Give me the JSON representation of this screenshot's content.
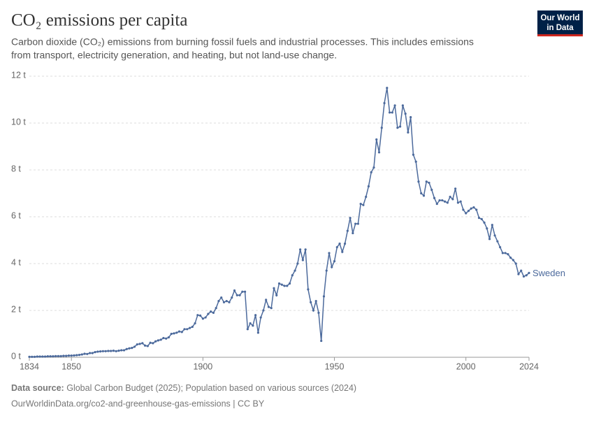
{
  "chart_data": {
    "type": "line",
    "title": "CO₂ emissions per capita",
    "subtitle": [
      "Carbon dioxide (CO₂) emissions from burning fossil fuels and industrial processes. This includes emissions",
      "from transport, electricity generation, and heating, but not land-use change."
    ],
    "logo": [
      "Our World",
      "in Data"
    ],
    "source_label": "Data source:",
    "source": "Global Carbon Budget (2025); Population based on various sources (2024)",
    "url": "OurWorldinData.org/co2-and-greenhouse-gas-emissions | CC BY",
    "xlim": [
      1834,
      2024
    ],
    "xticks": [
      1834,
      1850,
      1900,
      1950,
      2000,
      2024
    ],
    "ylim": [
      0,
      12
    ],
    "yticks": [
      {
        "value": 0,
        "label": "0 t"
      },
      {
        "value": 2,
        "label": "2 t"
      },
      {
        "value": 4,
        "label": "4 t"
      },
      {
        "value": 6,
        "label": "6 t"
      },
      {
        "value": 8,
        "label": "8 t"
      },
      {
        "value": 10,
        "label": "10 t"
      },
      {
        "value": 12,
        "label": "12 t"
      }
    ],
    "grid": true,
    "x": [
      1834,
      1835,
      1836,
      1837,
      1838,
      1839,
      1840,
      1841,
      1842,
      1843,
      1844,
      1845,
      1846,
      1847,
      1848,
      1849,
      1850,
      1851,
      1852,
      1853,
      1854,
      1855,
      1856,
      1857,
      1858,
      1859,
      1860,
      1861,
      1862,
      1863,
      1864,
      1865,
      1866,
      1867,
      1868,
      1869,
      1870,
      1871,
      1872,
      1873,
      1874,
      1875,
      1876,
      1877,
      1878,
      1879,
      1880,
      1881,
      1882,
      1883,
      1884,
      1885,
      1886,
      1887,
      1888,
      1889,
      1890,
      1891,
      1892,
      1893,
      1894,
      1895,
      1896,
      1897,
      1898,
      1899,
      1900,
      1901,
      1902,
      1903,
      1904,
      1905,
      1906,
      1907,
      1908,
      1909,
      1910,
      1911,
      1912,
      1913,
      1914,
      1915,
      1916,
      1917,
      1918,
      1919,
      1920,
      1921,
      1922,
      1923,
      1924,
      1925,
      1926,
      1927,
      1928,
      1929,
      1930,
      1931,
      1932,
      1933,
      1934,
      1935,
      1936,
      1937,
      1938,
      1939,
      1940,
      1941,
      1942,
      1943,
      1944,
      1945,
      1946,
      1947,
      1948,
      1949,
      1950,
      1951,
      1952,
      1953,
      1954,
      1955,
      1956,
      1957,
      1958,
      1959,
      1960,
      1961,
      1962,
      1963,
      1964,
      1965,
      1966,
      1967,
      1968,
      1969,
      1970,
      1971,
      1972,
      1973,
      1974,
      1975,
      1976,
      1977,
      1978,
      1979,
      1980,
      1981,
      1982,
      1983,
      1984,
      1985,
      1986,
      1987,
      1988,
      1989,
      1990,
      1991,
      1992,
      1993,
      1994,
      1995,
      1996,
      1997,
      1998,
      1999,
      2000,
      2001,
      2002,
      2003,
      2004,
      2005,
      2006,
      2007,
      2008,
      2009,
      2010,
      2011,
      2012,
      2013,
      2014,
      2015,
      2016,
      2017,
      2018,
      2019,
      2020,
      2021,
      2022,
      2023,
      2024
    ],
    "series": [
      {
        "name": "Sweden",
        "color": "#4c6a9c",
        "values": [
          0.02,
          0.02,
          0.02,
          0.03,
          0.03,
          0.03,
          0.03,
          0.04,
          0.04,
          0.04,
          0.05,
          0.05,
          0.05,
          0.06,
          0.06,
          0.07,
          0.07,
          0.08,
          0.09,
          0.1,
          0.12,
          0.15,
          0.14,
          0.18,
          0.18,
          0.22,
          0.24,
          0.25,
          0.26,
          0.26,
          0.27,
          0.27,
          0.28,
          0.26,
          0.28,
          0.3,
          0.3,
          0.35,
          0.38,
          0.4,
          0.45,
          0.55,
          0.57,
          0.6,
          0.5,
          0.48,
          0.62,
          0.6,
          0.68,
          0.72,
          0.75,
          0.82,
          0.8,
          0.85,
          1.0,
          1.02,
          1.05,
          1.1,
          1.08,
          1.2,
          1.2,
          1.25,
          1.3,
          1.45,
          1.8,
          1.78,
          1.65,
          1.7,
          1.85,
          1.95,
          1.9,
          2.1,
          2.4,
          2.55,
          2.35,
          2.4,
          2.35,
          2.55,
          2.85,
          2.65,
          2.65,
          2.8,
          2.8,
          1.2,
          1.45,
          1.35,
          1.8,
          1.05,
          1.7,
          2.0,
          2.45,
          2.15,
          2.1,
          2.95,
          2.65,
          3.15,
          3.1,
          3.05,
          3.05,
          3.15,
          3.5,
          3.7,
          4.0,
          4.6,
          4.15,
          4.6,
          2.9,
          2.35,
          2.0,
          2.4,
          1.9,
          0.7,
          2.6,
          3.7,
          4.45,
          3.85,
          4.1,
          4.7,
          4.85,
          4.5,
          4.85,
          5.4,
          5.95,
          5.3,
          5.7,
          5.7,
          6.55,
          6.5,
          6.85,
          7.3,
          7.9,
          8.1,
          9.3,
          8.75,
          9.8,
          10.85,
          11.5,
          10.45,
          10.45,
          10.75,
          9.8,
          9.85,
          10.75,
          10.4,
          9.6,
          10.25,
          8.65,
          8.35,
          7.5,
          7.0,
          6.9,
          7.5,
          7.45,
          7.15,
          6.8,
          6.55,
          6.7,
          6.7,
          6.65,
          6.6,
          6.85,
          6.75,
          7.2,
          6.6,
          6.65,
          6.3,
          6.15,
          6.25,
          6.35,
          6.4,
          6.3,
          5.95,
          5.9,
          5.75,
          5.5,
          5.05,
          5.65,
          5.2,
          4.95,
          4.7,
          4.45,
          4.45,
          4.4,
          4.25,
          4.15,
          4.0,
          3.55,
          3.7,
          3.45,
          3.5,
          3.6
        ]
      }
    ]
  }
}
